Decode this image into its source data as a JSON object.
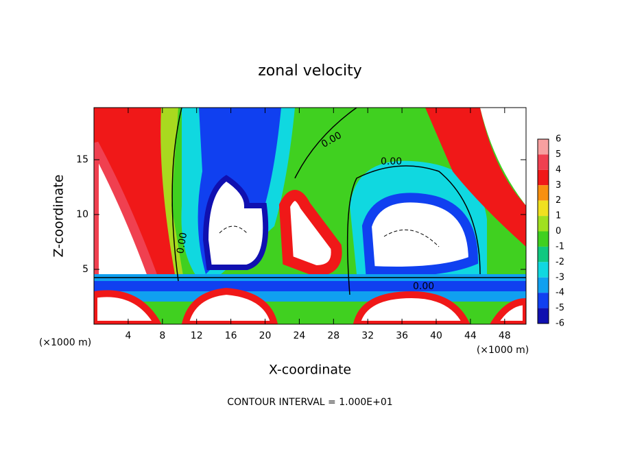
{
  "chart_data": {
    "type": "contour",
    "title": "zonal velocity",
    "x_label": "X-coordinate",
    "y_label": "Z-coordinate",
    "x_unit": "(×1000 m)",
    "x_unit_right": "(×1000 m)",
    "footer": "CONTOUR INTERVAL = 1.000E+01",
    "xlim": [
      0,
      50.5
    ],
    "xticks": [
      4,
      8,
      12,
      16,
      20,
      24,
      28,
      32,
      36,
      40,
      44,
      48
    ],
    "ylim": [
      0,
      19.75
    ],
    "yticks": [
      5,
      10,
      15
    ],
    "contour_labels": [
      "0.00",
      "0.00",
      "0.00",
      "0.00"
    ],
    "colorbar": {
      "ticks": [
        6,
        5,
        4,
        3,
        2,
        1,
        0,
        -1,
        -2,
        -3,
        -4,
        -5,
        -6
      ],
      "colors": [
        "#f7a0a0",
        "#f04050",
        "#f01818",
        "#f89010",
        "#f0e020",
        "#a0e020",
        "#40d020",
        "#10c880",
        "#10d8e0",
        "#10a0f0",
        "#1040f0",
        "#1010b0",
        "#8010c0"
      ]
    }
  }
}
